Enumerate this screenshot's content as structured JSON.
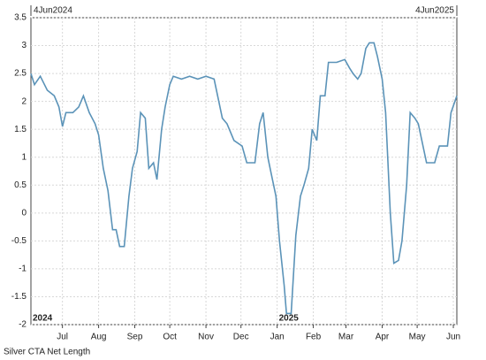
{
  "chart_data": {
    "type": "line",
    "range_labels": [
      {
        "value": "2024-06-04",
        "label": "4Jun2024"
      },
      {
        "value": "2025-06-04",
        "label": "4Jun2025"
      }
    ],
    "year_labels": [
      {
        "value": "2024-06-04",
        "label": "2024"
      },
      {
        "value": "2025-01-01",
        "label": "2025"
      }
    ],
    "x": [
      "2024-06-04",
      "2024-06-07",
      "2024-06-12",
      "2024-06-18",
      "2024-06-24",
      "2024-06-28",
      "2024-07-01",
      "2024-07-04",
      "2024-07-10",
      "2024-07-15",
      "2024-07-19",
      "2024-07-24",
      "2024-07-29",
      "2024-08-01",
      "2024-08-05",
      "2024-08-09",
      "2024-08-13",
      "2024-08-16",
      "2024-08-19",
      "2024-08-23",
      "2024-08-27",
      "2024-08-30",
      "2024-09-03",
      "2024-09-06",
      "2024-09-10",
      "2024-09-13",
      "2024-09-17",
      "2024-09-20",
      "2024-09-24",
      "2024-09-27",
      "2024-10-01",
      "2024-10-04",
      "2024-10-11",
      "2024-10-18",
      "2024-10-25",
      "2024-11-01",
      "2024-11-08",
      "2024-11-12",
      "2024-11-15",
      "2024-11-19",
      "2024-11-25",
      "2024-12-02",
      "2024-12-06",
      "2024-12-13",
      "2024-12-17",
      "2024-12-20",
      "2024-12-24",
      "2024-12-27",
      "2024-12-31",
      "2025-01-03",
      "2025-01-07",
      "2025-01-09",
      "2025-01-13",
      "2025-01-17",
      "2025-01-21",
      "2025-01-24",
      "2025-01-28",
      "2025-01-31",
      "2025-02-04",
      "2025-02-07",
      "2025-02-11",
      "2025-02-14",
      "2025-02-21",
      "2025-02-28",
      "2025-03-04",
      "2025-03-07",
      "2025-03-11",
      "2025-03-14",
      "2025-03-18",
      "2025-03-21",
      "2025-03-25",
      "2025-03-28",
      "2025-04-01",
      "2025-04-04",
      "2025-04-08",
      "2025-04-11",
      "2025-04-15",
      "2025-04-18",
      "2025-04-22",
      "2025-04-25",
      "2025-04-29",
      "2025-05-02",
      "2025-05-06",
      "2025-05-09",
      "2025-05-16",
      "2025-05-20",
      "2025-05-27",
      "2025-05-30",
      "2025-06-04"
    ],
    "series": [
      {
        "name": "Silver CTA Net Length",
        "color": "#5b93b8",
        "values": [
          2.5,
          2.3,
          2.45,
          2.2,
          2.1,
          1.9,
          1.55,
          1.8,
          1.8,
          1.9,
          2.1,
          1.8,
          1.6,
          1.4,
          0.8,
          0.4,
          -0.3,
          -0.3,
          -0.6,
          -0.6,
          0.3,
          0.8,
          1.1,
          1.8,
          1.7,
          0.8,
          0.9,
          0.6,
          1.5,
          1.9,
          2.3,
          2.45,
          2.4,
          2.45,
          2.4,
          2.45,
          2.4,
          2.0,
          1.7,
          1.6,
          1.3,
          1.2,
          0.9,
          0.9,
          1.6,
          1.8,
          1.0,
          0.7,
          0.3,
          -0.5,
          -1.3,
          -1.8,
          -1.8,
          -0.4,
          0.3,
          0.5,
          0.8,
          1.5,
          1.3,
          2.1,
          2.1,
          2.7,
          2.7,
          2.75,
          2.6,
          2.5,
          2.4,
          2.5,
          2.95,
          3.05,
          3.05,
          2.8,
          2.4,
          1.8,
          0.0,
          -0.9,
          -0.85,
          -0.5,
          0.5,
          1.8,
          1.7,
          1.6,
          1.2,
          0.9,
          0.9,
          1.2,
          1.2,
          1.8,
          2.1
        ]
      }
    ],
    "xlim": [
      "2024-06-04",
      "2025-06-04"
    ],
    "xticks": [
      {
        "value": "2024-07-01",
        "label": "Jul"
      },
      {
        "value": "2024-08-01",
        "label": "Aug"
      },
      {
        "value": "2024-09-01",
        "label": "Sep"
      },
      {
        "value": "2024-10-01",
        "label": "Oct"
      },
      {
        "value": "2024-11-01",
        "label": "Nov"
      },
      {
        "value": "2024-12-01",
        "label": "Dec"
      },
      {
        "value": "2025-01-01",
        "label": "Jan"
      },
      {
        "value": "2025-02-01",
        "label": "Feb"
      },
      {
        "value": "2025-03-01",
        "label": "Mar"
      },
      {
        "value": "2025-04-01",
        "label": "Apr"
      },
      {
        "value": "2025-05-01",
        "label": "May"
      },
      {
        "value": "2025-06-01",
        "label": "Jun"
      }
    ],
    "ylim": [
      -2,
      3.5
    ],
    "yticks": [
      3.5,
      3,
      2.5,
      2,
      1.5,
      1,
      0.5,
      0,
      -0.5,
      -1,
      -1.5,
      -2
    ],
    "grid": true
  }
}
